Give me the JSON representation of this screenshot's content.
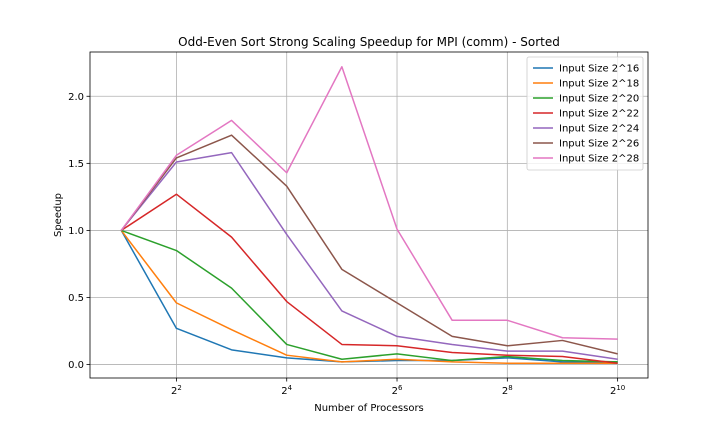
{
  "chart_data": {
    "type": "line",
    "title": "Odd-Even Sort Strong Scaling Speedup for MPI (comm) - Sorted",
    "xlabel": "Number of Processors",
    "ylabel": "Speedup",
    "x_scale": "log2",
    "x": [
      2,
      4,
      8,
      16,
      32,
      64,
      128,
      256,
      512,
      1024
    ],
    "xlim": [
      1.35,
      1500
    ],
    "ylim": [
      -0.1,
      2.33
    ],
    "x_ticks": [
      {
        "value": 4,
        "base": "2",
        "exp": "2"
      },
      {
        "value": 16,
        "base": "2",
        "exp": "4"
      },
      {
        "value": 64,
        "base": "2",
        "exp": "6"
      },
      {
        "value": 256,
        "base": "2",
        "exp": "8"
      },
      {
        "value": 1024,
        "base": "2",
        "exp": "10"
      }
    ],
    "y_ticks": [
      "0.0",
      "0.5",
      "1.0",
      "1.5",
      "2.0"
    ],
    "grid": true,
    "legend_position": "top-right",
    "series": [
      {
        "name": "Input Size 2^16",
        "color": "#1f77b4",
        "values": [
          1.0,
          0.27,
          0.11,
          0.05,
          0.02,
          0.03,
          0.03,
          0.05,
          0.02,
          0.02
        ]
      },
      {
        "name": "Input Size 2^18",
        "color": "#ff7f0e",
        "values": [
          1.0,
          0.46,
          0.26,
          0.07,
          0.02,
          0.04,
          0.02,
          0.01,
          0.01,
          0.01
        ]
      },
      {
        "name": "Input Size 2^20",
        "color": "#2ca02c",
        "values": [
          1.0,
          0.85,
          0.57,
          0.15,
          0.04,
          0.08,
          0.03,
          0.06,
          0.03,
          0.02
        ]
      },
      {
        "name": "Input Size 2^22",
        "color": "#d62728",
        "values": [
          1.0,
          1.27,
          0.95,
          0.47,
          0.15,
          0.14,
          0.09,
          0.07,
          0.06,
          0.01
        ]
      },
      {
        "name": "Input Size 2^24",
        "color": "#9467bd",
        "values": [
          1.0,
          1.51,
          1.58,
          0.97,
          0.4,
          0.21,
          0.15,
          0.1,
          0.1,
          0.04
        ]
      },
      {
        "name": "Input Size 2^26",
        "color": "#8c564b",
        "values": [
          1.0,
          1.54,
          1.71,
          1.33,
          0.71,
          0.46,
          0.21,
          0.14,
          0.18,
          0.08
        ]
      },
      {
        "name": "Input Size 2^28",
        "color": "#e377c2",
        "values": [
          1.0,
          1.56,
          1.82,
          1.43,
          2.22,
          1.01,
          0.33,
          0.33,
          0.2,
          0.19
        ]
      }
    ]
  }
}
